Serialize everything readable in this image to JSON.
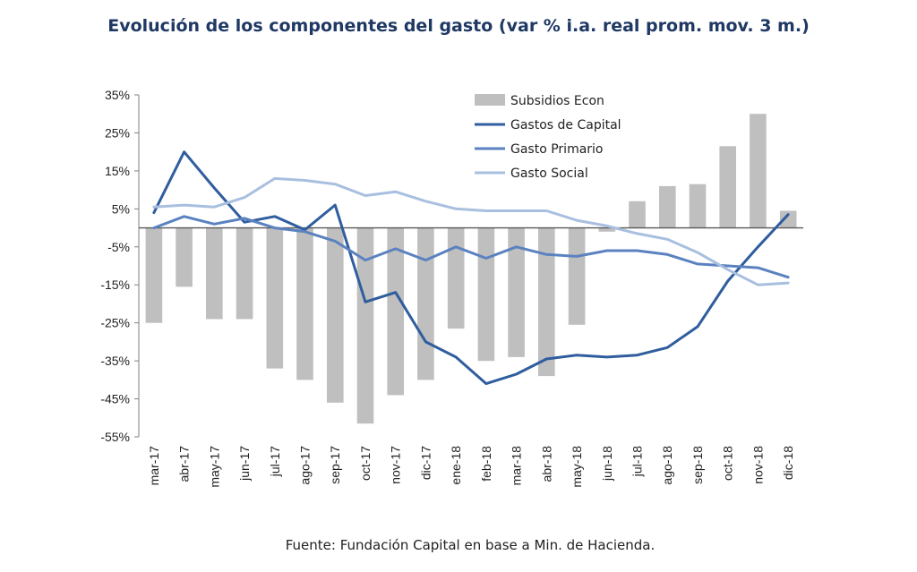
{
  "chart_data": {
    "type": "bar",
    "title": "Evolución de los componentes del gasto (var % i.a. real prom. mov. 3 m.)",
    "source": "Fuente: Fundación Capital en base a Min. de Hacienda.",
    "categories": [
      "mar-17",
      "abr-17",
      "may-17",
      "jun-17",
      "jul-17",
      "ago-17",
      "sep-17",
      "oct-17",
      "nov-17",
      "dic-17",
      "ene-18",
      "feb-18",
      "mar-18",
      "abr-18",
      "may-18",
      "jun-18",
      "jul-18",
      "ago-18",
      "sep-18",
      "oct-18",
      "nov-18",
      "dic-18"
    ],
    "ylim": [
      -55,
      35
    ],
    "yticks": [
      35,
      25,
      15,
      5,
      -5,
      -15,
      -25,
      -35,
      -45,
      -55
    ],
    "ytick_labels": [
      "35%",
      "25%",
      "15%",
      "5%",
      "-5%",
      "-15%",
      "-25%",
      "-35%",
      "-45%",
      "-55%"
    ],
    "legend_position": "top-center",
    "grid": false,
    "series": [
      {
        "name": "Subsidios Econ",
        "type": "bar",
        "color": "#BFBFBF",
        "values": [
          -25,
          -15.5,
          -24,
          -24,
          -37,
          -40,
          -46,
          -51.5,
          -44,
          -40,
          -26.5,
          -35,
          -34,
          -39,
          -25.5,
          -1,
          7,
          11,
          11.5,
          21.5,
          30,
          4.5
        ]
      },
      {
        "name": "Gastos de Capital",
        "type": "line",
        "color": "#2F5D9E",
        "values": [
          4,
          20,
          10.5,
          1.5,
          3,
          -0.5,
          6,
          -19.5,
          -17,
          -30,
          -34,
          -41,
          -38.5,
          -34.5,
          -33.5,
          -34,
          -33.5,
          -31.5,
          -26,
          -14,
          -5,
          3.5
        ]
      },
      {
        "name": "Gasto Primario",
        "type": "line",
        "color": "#5B82C0",
        "values": [
          0,
          3,
          1,
          2.5,
          0,
          -1,
          -3.5,
          -8.5,
          -5.5,
          -8.5,
          -5,
          -8,
          -5,
          -7,
          -7.5,
          -6,
          -6,
          -7,
          -9.5,
          -10,
          -10.5,
          -13
        ]
      },
      {
        "name": "Gasto Social",
        "type": "line",
        "color": "#A9BFDF",
        "values": [
          5.5,
          6,
          5.5,
          8,
          13,
          12.5,
          11.5,
          8.5,
          9.5,
          7,
          5,
          4.5,
          4.5,
          4.5,
          2,
          0.5,
          -1.5,
          -3,
          -6.5,
          -11,
          -15,
          -14.5
        ]
      }
    ]
  }
}
